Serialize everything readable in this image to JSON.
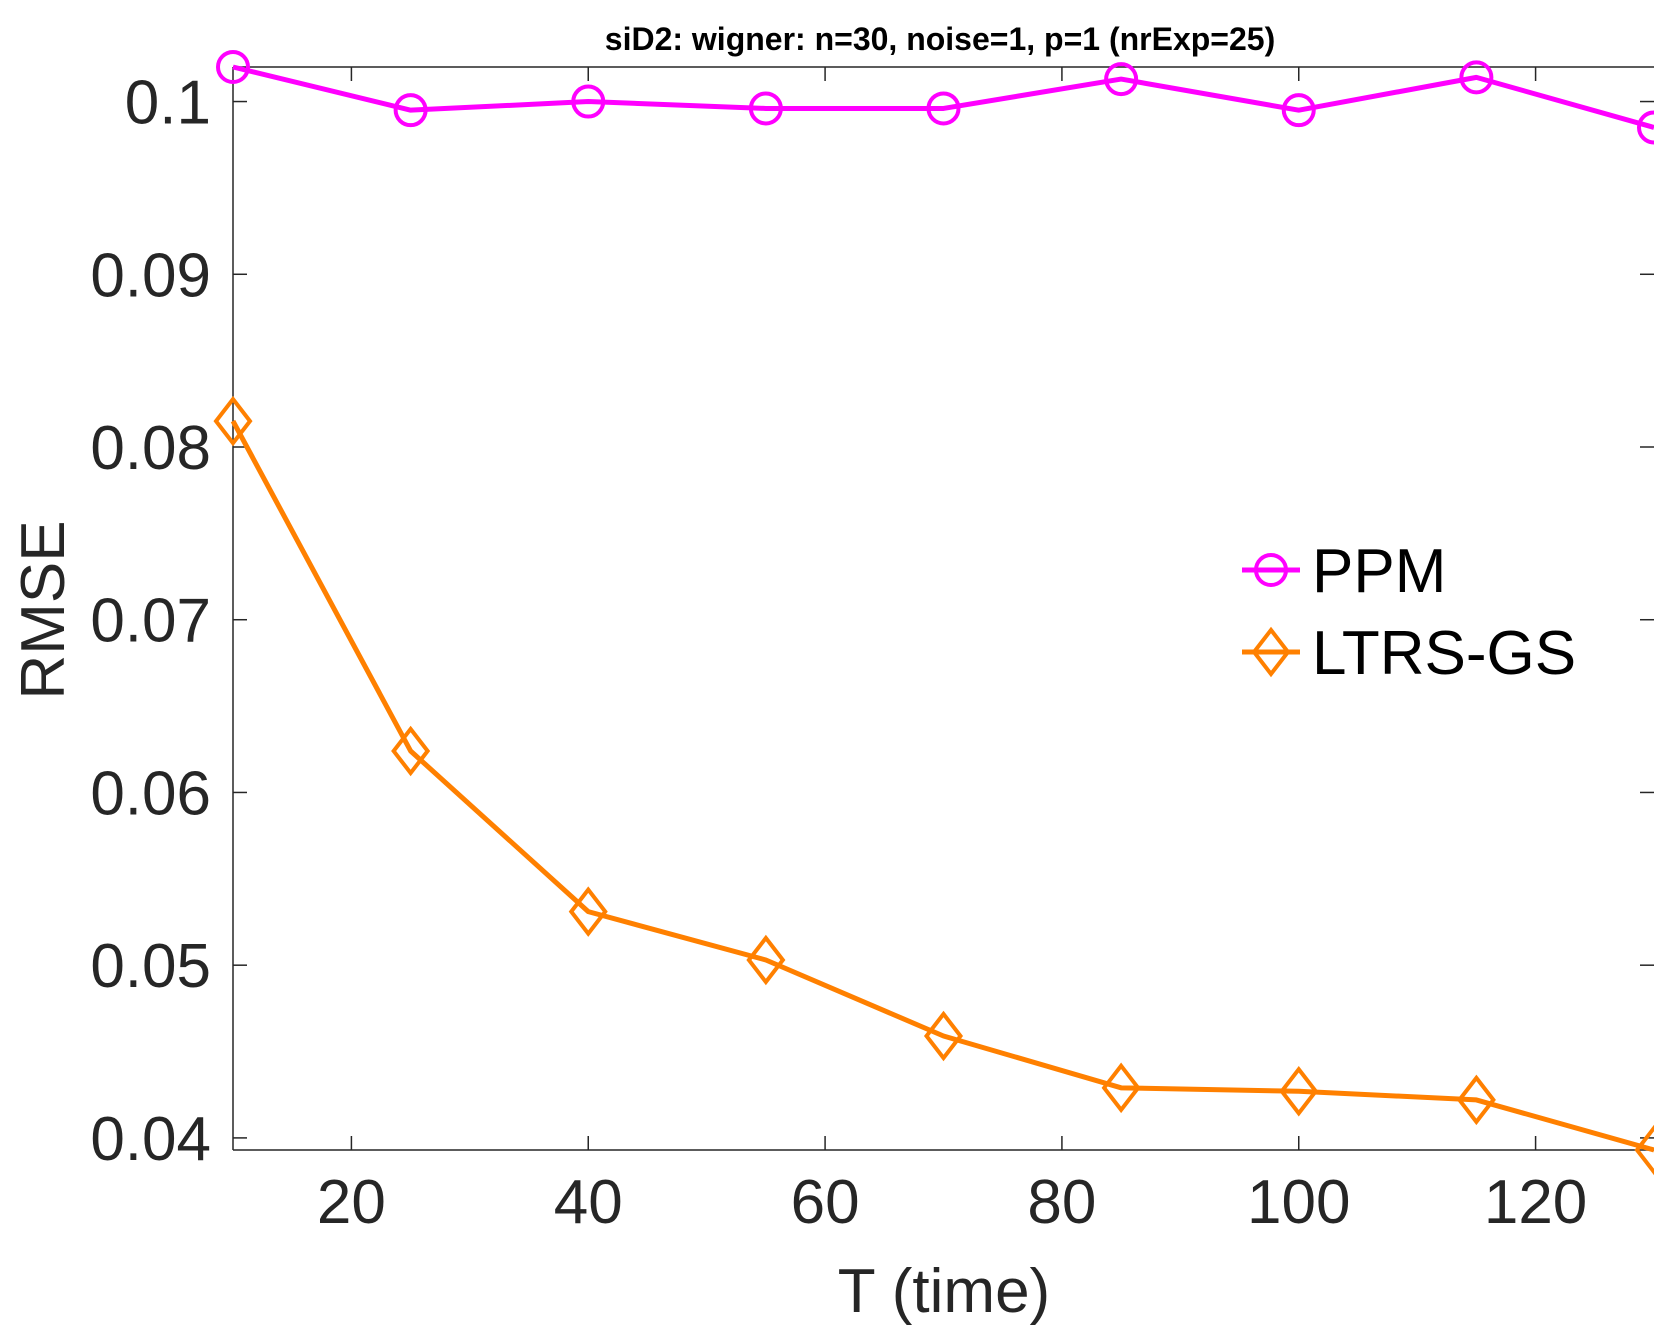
{
  "chart_data": {
    "type": "line",
    "title": "siD2: wigner: n=30, noise=1, p=1 (nrExp=25)",
    "xlabel": "T (time)",
    "ylabel": "RMSE",
    "xlim": [
      10,
      130
    ],
    "ylim": [
      0.0393,
      0.102
    ],
    "xticks": [
      20,
      40,
      60,
      80,
      100,
      120
    ],
    "xtick_labels": [
      "20",
      "40",
      "60",
      "80",
      "100",
      "120"
    ],
    "yticks": [
      0.04,
      0.05,
      0.06,
      0.07,
      0.08,
      0.09,
      0.1
    ],
    "ytick_labels": [
      "0.04",
      "0.05",
      "0.06",
      "0.07",
      "0.08",
      "0.09",
      "0.1"
    ],
    "grid": false,
    "legend_position": "right",
    "x": [
      10,
      25,
      40,
      55,
      70,
      85,
      100,
      115,
      130
    ],
    "series": [
      {
        "name": "PPM",
        "marker": "circle",
        "color": "#ff00ff",
        "values": [
          0.102,
          0.0995,
          0.1,
          0.0996,
          0.0996,
          0.1013,
          0.0995,
          0.1014,
          0.0985
        ]
      },
      {
        "name": "LTRS-GS",
        "marker": "diamond",
        "color": "#ff8000",
        "values": [
          0.0815,
          0.0624,
          0.0531,
          0.0503,
          0.0459,
          0.0429,
          0.0427,
          0.0422,
          0.0393
        ]
      }
    ]
  }
}
